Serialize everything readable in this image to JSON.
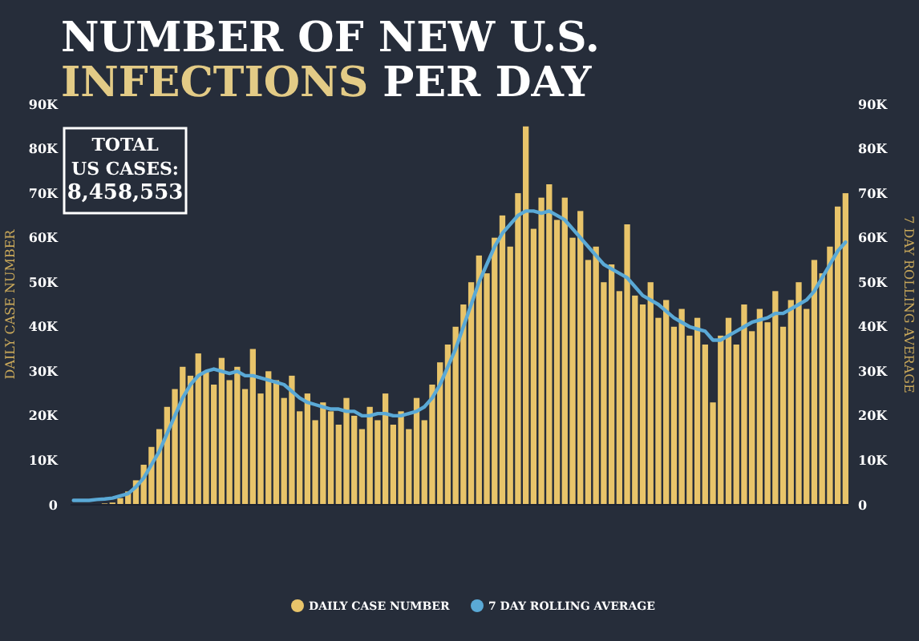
{
  "chart_data": {
    "type": "bar",
    "title": "NUMBER OF NEW U.S. INFECTIONS PER DAY",
    "ylabel": "DAILY CASE NUMBER",
    "y2label": "7 DAY ROLLING AVERAGE",
    "annotations": [
      "TOTAL US CASES: 8,458,553"
    ],
    "categories": [
      null,
      null,
      null,
      null,
      null,
      null,
      null,
      null,
      null,
      null,
      null,
      null,
      null,
      null,
      null,
      null,
      null,
      null,
      null,
      null,
      null,
      null,
      null,
      null,
      null,
      null,
      null,
      null,
      null,
      null,
      null,
      null,
      null,
      null,
      null,
      null,
      null,
      null,
      null,
      null,
      null,
      null,
      null,
      null,
      null,
      null,
      null,
      null,
      null,
      null,
      null,
      null,
      null,
      null,
      null,
      null,
      null,
      null,
      null,
      null,
      null,
      null,
      null,
      null,
      null,
      null,
      null,
      null,
      null,
      null,
      null,
      null,
      null,
      null,
      null,
      null,
      null,
      null,
      null,
      null,
      null,
      null,
      null,
      null,
      null,
      null,
      null,
      null,
      null,
      null,
      null,
      null,
      null,
      null,
      null,
      null,
      null,
      null,
      null,
      null
    ],
    "series": [
      {
        "name": "DAILY CASE NUMBER",
        "color": "#e8c46a",
        "values": [
          0,
          0,
          null,
          null,
          300,
          500,
          1500,
          3000,
          5500,
          9000,
          13000,
          17000,
          22000,
          26000,
          31000,
          29000,
          34000,
          30000,
          27000,
          33000,
          28000,
          31000,
          26000,
          35000,
          25000,
          30000,
          28000,
          24000,
          29000,
          21000,
          25000,
          19000,
          23000,
          21000,
          18000,
          24000,
          20000,
          17000,
          22000,
          19000,
          25000,
          18000,
          21000,
          17000,
          24000,
          19000,
          27000,
          32000,
          36000,
          40000,
          45000,
          50000,
          56000,
          52000,
          60000,
          65000,
          58000,
          70000,
          85000,
          62000,
          69000,
          72000,
          64000,
          69000,
          60000,
          66000,
          55000,
          58000,
          50000,
          54000,
          48000,
          63000,
          47000,
          45000,
          50000,
          42000,
          46000,
          40000,
          44000,
          38000,
          42000,
          36000,
          23000,
          38000,
          42000,
          36000,
          45000,
          39000,
          44000,
          41000,
          48000,
          40000,
          46000,
          50000,
          44000,
          55000,
          52000,
          58000,
          67000,
          70000
        ]
      },
      {
        "name": "7 DAY ROLLING AVERAGE",
        "type": "line",
        "axis": "y2",
        "color": "#5aa9d6",
        "values": [
          1000,
          1000,
          1000,
          1200,
          1300,
          1500,
          2000,
          2500,
          4000,
          6000,
          9000,
          12000,
          16000,
          20000,
          24000,
          27000,
          29000,
          30000,
          30500,
          30000,
          29500,
          30000,
          29000,
          29000,
          28500,
          28000,
          27500,
          27000,
          25500,
          24000,
          23000,
          22500,
          22000,
          21500,
          21500,
          21000,
          21000,
          20000,
          20000,
          20500,
          20500,
          20000,
          20000,
          20500,
          21000,
          22000,
          24000,
          27000,
          31000,
          35000,
          40000,
          45000,
          50000,
          54000,
          58000,
          61000,
          63000,
          65000,
          66000,
          66000,
          65500,
          66000,
          65000,
          64000,
          62000,
          60000,
          58000,
          56000,
          54000,
          53000,
          52000,
          51000,
          49000,
          47000,
          46000,
          45000,
          43500,
          42000,
          41000,
          40000,
          39500,
          39000,
          37000,
          37000,
          38000,
          39000,
          40000,
          41000,
          41500,
          42000,
          43000,
          43000,
          44000,
          45000,
          46000,
          48000,
          51000,
          54000,
          57000,
          59000
        ]
      }
    ],
    "ylim": [
      0,
      90000
    ],
    "yticks": [
      {
        "value": 0,
        "label": "0"
      },
      {
        "value": 10000,
        "label": "10K"
      },
      {
        "value": 20000,
        "label": "20K"
      },
      {
        "value": 30000,
        "label": "30K"
      },
      {
        "value": 40000,
        "label": "40K"
      },
      {
        "value": 50000,
        "label": "50K"
      },
      {
        "value": 60000,
        "label": "60K"
      },
      {
        "value": 70000,
        "label": "70K"
      },
      {
        "value": 80000,
        "label": "80K"
      },
      {
        "value": 90000,
        "label": "90K"
      }
    ],
    "y2lim": [
      0,
      90000
    ],
    "y2ticks": [
      {
        "value": 0,
        "label": "0"
      },
      {
        "value": 10000,
        "label": "10K"
      },
      {
        "value": 20000,
        "label": "20K"
      },
      {
        "value": 30000,
        "label": "30K"
      },
      {
        "value": 40000,
        "label": "40K"
      },
      {
        "value": 50000,
        "label": "50K"
      },
      {
        "value": 60000,
        "label": "60K"
      },
      {
        "value": 70000,
        "label": "70K"
      },
      {
        "value": 80000,
        "label": "80K"
      },
      {
        "value": 90000,
        "label": "90K"
      }
    ],
    "tick_labels": "y",
    "legend": "bottom",
    "grid": false
  }
}
